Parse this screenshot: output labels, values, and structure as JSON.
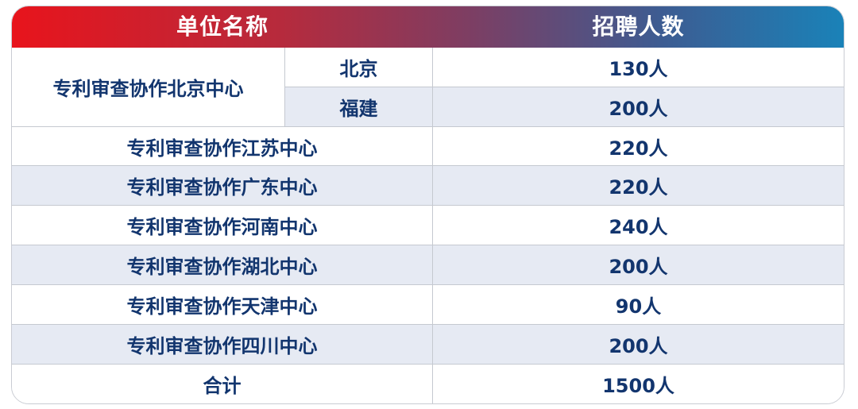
{
  "header": {
    "unit_name": "单位名称",
    "recruit_count": "招聘人数"
  },
  "beijing_center": {
    "name": "专利审查协作北京中心",
    "sub_rows": [
      {
        "location": "北京",
        "count": "130人"
      },
      {
        "location": "福建",
        "count": "200人"
      }
    ]
  },
  "rows": [
    {
      "name": "专利审查协作江苏中心",
      "count": "220人"
    },
    {
      "name": "专利审查协作广东中心",
      "count": "220人"
    },
    {
      "name": "专利审查协作河南中心",
      "count": "240人"
    },
    {
      "name": "专利审查协作湖北中心",
      "count": "200人"
    },
    {
      "name": "专利审查协作天津中心",
      "count": "90人"
    },
    {
      "name": "专利审查协作四川中心",
      "count": "200人"
    }
  ],
  "total": {
    "label": "合计",
    "count": "1500人"
  },
  "colors": {
    "header_gradient_start": "#e8141c",
    "header_gradient_end": "#1a82b8",
    "text": "#12356e",
    "row_stripe": "#e6eaf3"
  }
}
